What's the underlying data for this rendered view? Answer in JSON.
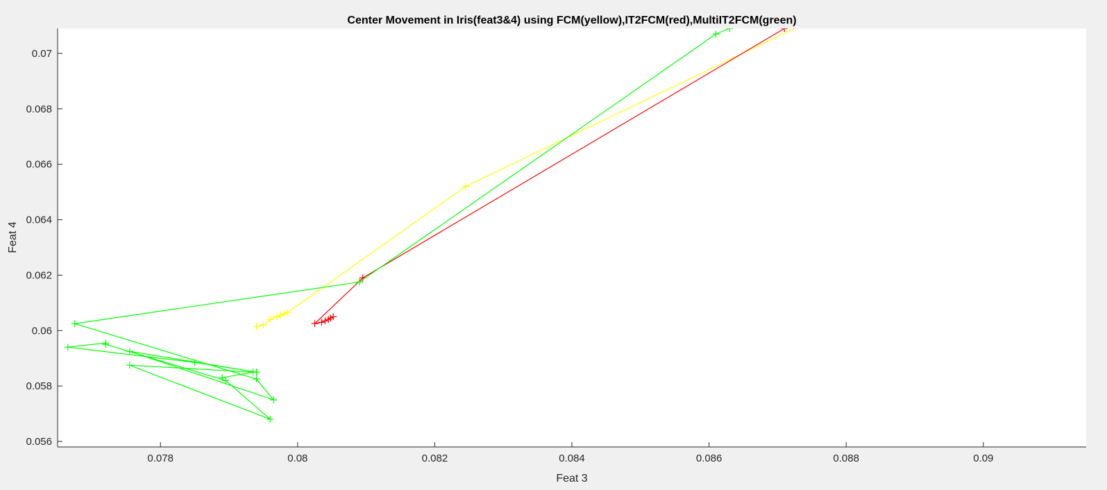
{
  "chart_data": {
    "type": "line",
    "title": "Center Movement in Iris(feat3&4) using FCM(yellow),IT2FCM(red),MultiIT2FCM(green)",
    "xlabel": "Feat 3",
    "ylabel": "Feat 4",
    "xlim": [
      0.0765,
      0.0915
    ],
    "ylim": [
      0.0558,
      0.0709
    ],
    "xticks": [
      0.078,
      0.08,
      0.082,
      0.084,
      0.086,
      0.088,
      0.09
    ],
    "xtick_labels": [
      "0.078",
      "0.08",
      "0.082",
      "0.084",
      "0.086",
      "0.088",
      "0.09"
    ],
    "yticks": [
      0.056,
      0.058,
      0.06,
      0.062,
      0.064,
      0.066,
      0.068,
      0.07
    ],
    "ytick_labels": [
      "0.056",
      "0.058",
      "0.06",
      "0.062",
      "0.064",
      "0.066",
      "0.068",
      "0.07"
    ],
    "grid": false,
    "marker": "+",
    "series": [
      {
        "color": "#ffff00",
        "x": [
          0.0875,
          0.08245,
          0.07985,
          0.0798,
          0.07975,
          0.0797,
          0.0796,
          0.0795,
          0.0794
        ],
        "y": [
          0.0712,
          0.0652,
          0.06065,
          0.0606,
          0.06055,
          0.0605,
          0.0604,
          0.0602,
          0.06015
        ]
      },
      {
        "color": "#ff0000",
        "x": [
          0.0871,
          0.08095,
          0.08025,
          0.08035,
          0.0804,
          0.08045,
          0.08048,
          0.08052
        ],
        "y": [
          0.0709,
          0.0619,
          0.06025,
          0.0603,
          0.06035,
          0.0604,
          0.06045,
          0.0605
        ]
      },
      {
        "color": "#00ff00",
        "x": [
          0.0863,
          0.0861,
          0.0809,
          0.07675,
          0.0794,
          0.07965,
          0.07755,
          0.0794,
          0.0794,
          0.0785,
          0.07665,
          0.0772,
          0.0772,
          0.07895,
          0.0796,
          0.07755,
          0.07935,
          0.0789
        ],
        "y": [
          0.0709,
          0.0707,
          0.06175,
          0.06025,
          0.05825,
          0.0575,
          0.05925,
          0.0585,
          0.0585,
          0.05885,
          0.0594,
          0.05955,
          0.0595,
          0.0582,
          0.0568,
          0.05875,
          0.0585,
          0.0583
        ]
      }
    ]
  }
}
